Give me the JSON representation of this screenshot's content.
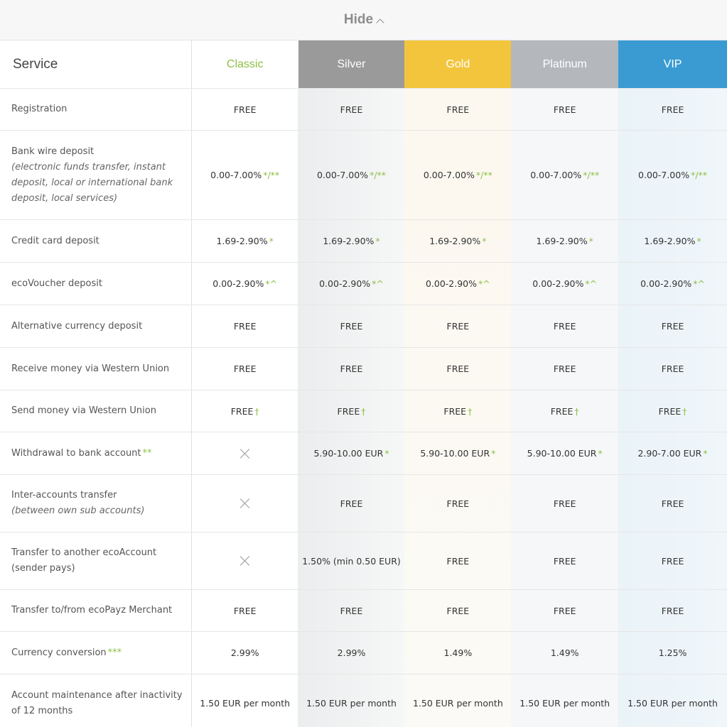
{
  "toggle": {
    "label": "Hide"
  },
  "header": {
    "service": "Service",
    "plans": [
      "Classic",
      "Silver",
      "Gold",
      "Platinum",
      "VIP"
    ]
  },
  "colors": {
    "classic": "#8cc045",
    "silver": "#9a9a9a",
    "gold": "#f3c53d",
    "platinum": "#b4b8bd",
    "vip": "#3a9bd2"
  },
  "rows": [
    {
      "label": "Registration",
      "sub": "",
      "label_mark": "",
      "cells": [
        [
          "FREE",
          ""
        ],
        [
          "FREE",
          ""
        ],
        [
          "FREE",
          ""
        ],
        [
          "FREE",
          ""
        ],
        [
          "FREE",
          ""
        ]
      ]
    },
    {
      "label": "Bank wire deposit",
      "sub": "(electronic funds transfer, instant deposit, local or international bank deposit, local services)",
      "label_mark": "",
      "cells": [
        [
          "0.00-7.00%",
          "*/**"
        ],
        [
          "0.00-7.00%",
          "*/**"
        ],
        [
          "0.00-7.00%",
          "*/**"
        ],
        [
          "0.00-7.00%",
          "*/**"
        ],
        [
          "0.00-7.00%",
          "*/**"
        ]
      ]
    },
    {
      "label": "Credit card deposit",
      "sub": "",
      "label_mark": "",
      "cells": [
        [
          "1.69-2.90%",
          "*"
        ],
        [
          "1.69-2.90%",
          "*"
        ],
        [
          "1.69-2.90%",
          "*"
        ],
        [
          "1.69-2.90%",
          "*"
        ],
        [
          "1.69-2.90%",
          "*"
        ]
      ]
    },
    {
      "label": "ecoVoucher deposit",
      "sub": "",
      "label_mark": "",
      "cells": [
        [
          "0.00-2.90%",
          "*^"
        ],
        [
          "0.00-2.90%",
          "*^"
        ],
        [
          "0.00-2.90%",
          "*^"
        ],
        [
          "0.00-2.90%",
          "*^"
        ],
        [
          "0.00-2.90%",
          "*^"
        ]
      ]
    },
    {
      "label": "Alternative currency deposit",
      "sub": "",
      "label_mark": "",
      "cells": [
        [
          "FREE",
          ""
        ],
        [
          "FREE",
          ""
        ],
        [
          "FREE",
          ""
        ],
        [
          "FREE",
          ""
        ],
        [
          "FREE",
          ""
        ]
      ]
    },
    {
      "label": "Receive money via Western Union",
      "sub": "",
      "label_mark": "",
      "cells": [
        [
          "FREE",
          ""
        ],
        [
          "FREE",
          ""
        ],
        [
          "FREE",
          ""
        ],
        [
          "FREE",
          ""
        ],
        [
          "FREE",
          ""
        ]
      ]
    },
    {
      "label": "Send money via Western Union",
      "sub": "",
      "label_mark": "",
      "cells": [
        [
          "FREE",
          "†"
        ],
        [
          "FREE",
          "†"
        ],
        [
          "FREE",
          "†"
        ],
        [
          "FREE",
          "†"
        ],
        [
          "FREE",
          "†"
        ]
      ]
    },
    {
      "label": "Withdrawal to bank account",
      "sub": "",
      "label_mark": "**",
      "cells": [
        [
          "X",
          ""
        ],
        [
          "5.90-10.00 EUR",
          "*"
        ],
        [
          "5.90-10.00 EUR",
          "*"
        ],
        [
          "5.90-10.00 EUR",
          "*"
        ],
        [
          "2.90-7.00 EUR",
          "*"
        ]
      ]
    },
    {
      "label": "Inter-accounts transfer",
      "sub": "(between own sub accounts)",
      "label_mark": "",
      "cells": [
        [
          "X",
          ""
        ],
        [
          "FREE",
          ""
        ],
        [
          "FREE",
          ""
        ],
        [
          "FREE",
          ""
        ],
        [
          "FREE",
          ""
        ]
      ]
    },
    {
      "label": "Transfer to another ecoAccount (sender pays)",
      "sub": "",
      "label_mark": "",
      "cells": [
        [
          "X",
          ""
        ],
        [
          "1.50% (min 0.50 EUR)",
          ""
        ],
        [
          "FREE",
          ""
        ],
        [
          "FREE",
          ""
        ],
        [
          "FREE",
          ""
        ]
      ]
    },
    {
      "label": "Transfer to/from ecoPayz Merchant",
      "sub": "",
      "label_mark": "",
      "cells": [
        [
          "FREE",
          ""
        ],
        [
          "FREE",
          ""
        ],
        [
          "FREE",
          ""
        ],
        [
          "FREE",
          ""
        ],
        [
          "FREE",
          ""
        ]
      ]
    },
    {
      "label": "Currency conversion",
      "sub": "",
      "label_mark": "***",
      "cells": [
        [
          "2.99%",
          ""
        ],
        [
          "2.99%",
          ""
        ],
        [
          "1.49%",
          ""
        ],
        [
          "1.49%",
          ""
        ],
        [
          "1.25%",
          ""
        ]
      ]
    },
    {
      "label": "Account maintenance after inactivity of 12 months",
      "sub": "",
      "label_mark": "",
      "cells": [
        [
          "1.50 EUR per month",
          ""
        ],
        [
          "1.50 EUR per month",
          ""
        ],
        [
          "1.50 EUR per month",
          ""
        ],
        [
          "1.50 EUR per month",
          ""
        ],
        [
          "1.50 EUR per month",
          ""
        ]
      ]
    }
  ]
}
